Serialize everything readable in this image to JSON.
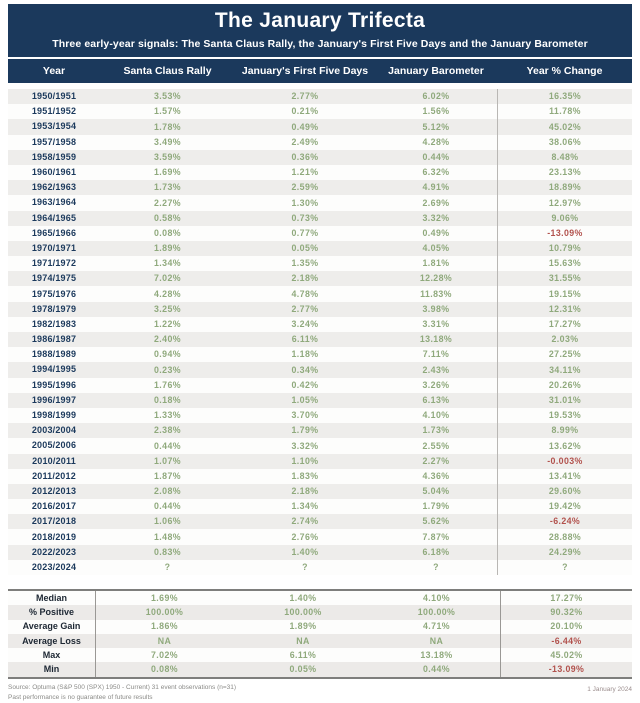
{
  "chart_data": {
    "type": "table",
    "title": "The January Trifecta",
    "subtitle": "Three early-year signals: The Santa Claus Rally, the January's First Five Days and the January Barometer",
    "columns": [
      "Year",
      "Santa Claus Rally",
      "January's First Five Days",
      "January Barometer",
      "Year % Change"
    ],
    "rows": [
      [
        "1950/1951",
        "3.53%",
        "2.77%",
        "6.02%",
        "16.35%"
      ],
      [
        "1951/1952",
        "1.57%",
        "0.21%",
        "1.56%",
        "11.78%"
      ],
      [
        "1953/1954",
        "1.78%",
        "0.49%",
        "5.12%",
        "45.02%"
      ],
      [
        "1957/1958",
        "3.49%",
        "2.49%",
        "4.28%",
        "38.06%"
      ],
      [
        "1958/1959",
        "3.59%",
        "0.36%",
        "0.44%",
        "8.48%"
      ],
      [
        "1960/1961",
        "1.69%",
        "1.21%",
        "6.32%",
        "23.13%"
      ],
      [
        "1962/1963",
        "1.73%",
        "2.59%",
        "4.91%",
        "18.89%"
      ],
      [
        "1963/1964",
        "2.27%",
        "1.30%",
        "2.69%",
        "12.97%"
      ],
      [
        "1964/1965",
        "0.58%",
        "0.73%",
        "3.32%",
        "9.06%"
      ],
      [
        "1965/1966",
        "0.08%",
        "0.77%",
        "0.49%",
        "-13.09%"
      ],
      [
        "1970/1971",
        "1.89%",
        "0.05%",
        "4.05%",
        "10.79%"
      ],
      [
        "1971/1972",
        "1.34%",
        "1.35%",
        "1.81%",
        "15.63%"
      ],
      [
        "1974/1975",
        "7.02%",
        "2.18%",
        "12.28%",
        "31.55%"
      ],
      [
        "1975/1976",
        "4.28%",
        "4.78%",
        "11.83%",
        "19.15%"
      ],
      [
        "1978/1979",
        "3.25%",
        "2.77%",
        "3.98%",
        "12.31%"
      ],
      [
        "1982/1983",
        "1.22%",
        "3.24%",
        "3.31%",
        "17.27%"
      ],
      [
        "1986/1987",
        "2.40%",
        "6.11%",
        "13.18%",
        "2.03%"
      ],
      [
        "1988/1989",
        "0.94%",
        "1.18%",
        "7.11%",
        "27.25%"
      ],
      [
        "1994/1995",
        "0.23%",
        "0.34%",
        "2.43%",
        "34.11%"
      ],
      [
        "1995/1996",
        "1.76%",
        "0.42%",
        "3.26%",
        "20.26%"
      ],
      [
        "1996/1997",
        "0.18%",
        "1.05%",
        "6.13%",
        "31.01%"
      ],
      [
        "1998/1999",
        "1.33%",
        "3.70%",
        "4.10%",
        "19.53%"
      ],
      [
        "2003/2004",
        "2.38%",
        "1.79%",
        "1.73%",
        "8.99%"
      ],
      [
        "2005/2006",
        "0.44%",
        "3.32%",
        "2.55%",
        "13.62%"
      ],
      [
        "2010/2011",
        "1.07%",
        "1.10%",
        "2.27%",
        "-0.003%"
      ],
      [
        "2011/2012",
        "1.87%",
        "1.83%",
        "4.36%",
        "13.41%"
      ],
      [
        "2012/2013",
        "2.08%",
        "2.18%",
        "5.04%",
        "29.60%"
      ],
      [
        "2016/2017",
        "0.44%",
        "1.34%",
        "1.79%",
        "19.42%"
      ],
      [
        "2017/2018",
        "1.06%",
        "2.74%",
        "5.62%",
        "-6.24%"
      ],
      [
        "2018/2019",
        "1.48%",
        "2.76%",
        "7.87%",
        "28.88%"
      ],
      [
        "2022/2023",
        "0.83%",
        "1.40%",
        "6.18%",
        "24.29%"
      ],
      [
        "2023/2024",
        "?",
        "?",
        "?",
        "?"
      ]
    ],
    "summary_rows": [
      [
        "Median",
        "1.69%",
        "1.40%",
        "4.10%",
        "17.27%"
      ],
      [
        "% Positive",
        "100.00%",
        "100.00%",
        "100.00%",
        "90.32%"
      ],
      [
        "Average Gain",
        "1.86%",
        "1.89%",
        "4.71%",
        "20.10%"
      ],
      [
        "Average Loss",
        "NA",
        "NA",
        "NA",
        "-6.44%"
      ],
      [
        "Max",
        "7.02%",
        "6.11%",
        "13.18%",
        "45.02%"
      ],
      [
        "Min",
        "0.08%",
        "0.05%",
        "0.44%",
        "-13.09%"
      ]
    ],
    "legend_position": "none",
    "grid": "row-stripes"
  },
  "footer": {
    "source_line": "Source: Optuma (S&P 500 (SPX) 1950 - Current)  31 event observations (n=31)",
    "disclaimer_line": "Past performance is no guarantee of future results",
    "date": "1 January 2024"
  },
  "colors": {
    "navy": "#1b395c",
    "positive_green": "#8fa97c",
    "negative_red": "#b2524d",
    "stripe_gray": "#eeedeb"
  }
}
